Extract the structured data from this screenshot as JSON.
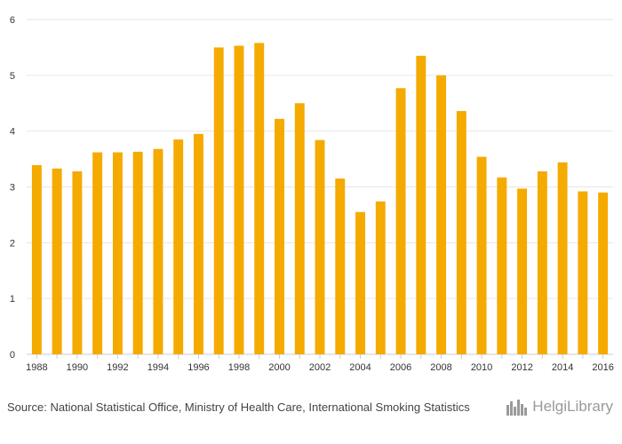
{
  "chart_data": {
    "type": "bar",
    "title": "",
    "xlabel": "",
    "ylabel": "",
    "categories": [
      "1988",
      "1989",
      "1990",
      "1991",
      "1992",
      "1993",
      "1994",
      "1995",
      "1996",
      "1997",
      "1998",
      "1999",
      "2000",
      "2001",
      "2002",
      "2003",
      "2004",
      "2005",
      "2006",
      "2007",
      "2008",
      "2009",
      "2010",
      "2011",
      "2012",
      "2013",
      "2014",
      "2015",
      "2016"
    ],
    "values": [
      3.39,
      3.33,
      3.28,
      3.62,
      3.62,
      3.63,
      3.68,
      3.85,
      3.95,
      5.5,
      5.53,
      5.58,
      4.22,
      4.5,
      3.84,
      3.15,
      2.55,
      2.74,
      4.77,
      5.35,
      5.0,
      4.36,
      3.54,
      3.17,
      2.97,
      3.28,
      3.44,
      2.92,
      2.9
    ],
    "x_tick_labels": [
      "1988",
      "1990",
      "1992",
      "1994",
      "1996",
      "1998",
      "2000",
      "2002",
      "2004",
      "2006",
      "2008",
      "2010",
      "2012",
      "2014",
      "2016"
    ],
    "y_ticks": [
      0,
      1,
      2,
      3,
      4,
      5,
      6
    ],
    "ylim": [
      0,
      6
    ],
    "grid": true,
    "bar_color": "#f5aa00",
    "legend": "none"
  },
  "footer": {
    "source_label": "Source:",
    "source_text": "National Statistical Office, Ministry of Health Care, International Smoking Statistics"
  },
  "logo": {
    "text": "HelgiLibrary",
    "icon": "city-skyline-icon",
    "color": "#9a9a9a"
  }
}
